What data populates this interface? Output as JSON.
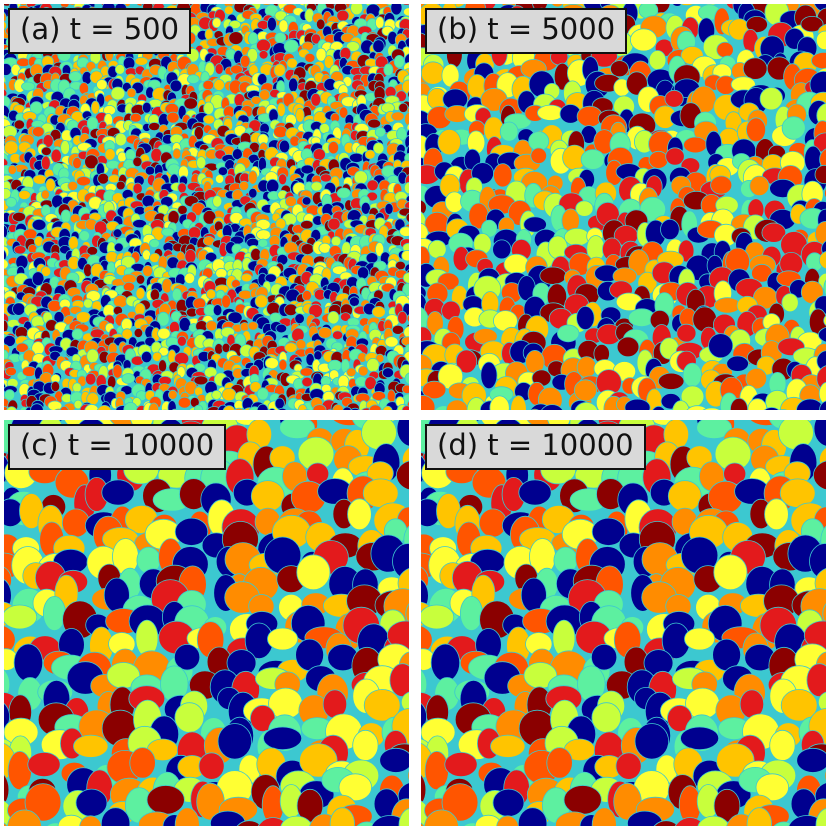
{
  "panels": [
    {
      "label": "(a) t = 500",
      "grain_density": "fine"
    },
    {
      "label": "(b) t = 5000",
      "grain_density": "medium"
    },
    {
      "label": "(c) t = 10000",
      "grain_density": "coarse"
    },
    {
      "label": "(d) t = 10000",
      "grain_density": "coarse"
    }
  ],
  "colors": {
    "boundary": "#3cc8d0",
    "grain_palette": [
      "#00008f",
      "#8b0000",
      "#e31a1c",
      "#ff5500",
      "#ff8c00",
      "#ffc400",
      "#ffff33",
      "#c8ff3c",
      "#5df0a0",
      "#00008f"
    ]
  }
}
